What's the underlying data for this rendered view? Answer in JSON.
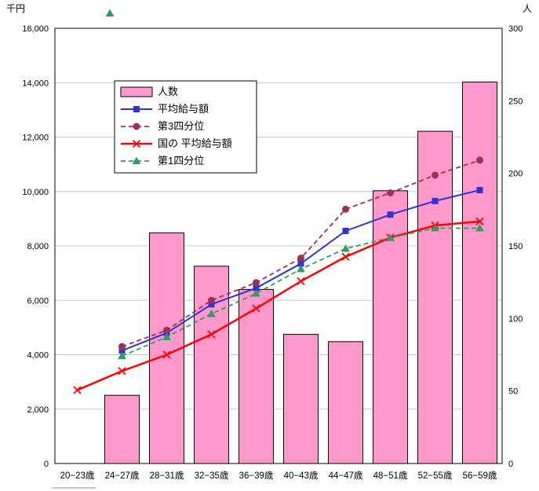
{
  "chart_data": {
    "type": "bar",
    "subtype": "combo-bar-line",
    "title": "",
    "background": "#FFFFFF",
    "grid": true,
    "left_axis": {
      "title": "千円",
      "min": 0,
      "max": 16000,
      "step": 2000
    },
    "right_axis": {
      "title": "人",
      "min": 0,
      "max": 300,
      "step": 50
    },
    "categories": [
      "20−23歳",
      "24−27歳",
      "28−31歳",
      "32−35歳",
      "36−39歳",
      "40−43歳",
      "44−47歳",
      "48−51歳",
      "52−55歳",
      "56−59歳"
    ],
    "bars": {
      "name": "人数",
      "axis": "right",
      "color": "#FF99CC",
      "border": "#000000",
      "values": [
        null,
        47,
        159,
        136,
        120,
        89,
        84,
        188,
        229,
        263
      ]
    },
    "series": [
      {
        "name": "平均給与額",
        "axis": "left",
        "color": "#3333CC",
        "marker": "square",
        "line": "solid",
        "width": 2,
        "values": [
          null,
          4150,
          4800,
          5850,
          6450,
          7350,
          8550,
          9150,
          9650,
          10050
        ]
      },
      {
        "name": "第3四分位",
        "axis": "left",
        "color": "#993355",
        "marker": "circle",
        "line": "dashed",
        "width": 1.8,
        "values": [
          null,
          4300,
          4900,
          6000,
          6650,
          7550,
          9350,
          9950,
          10600,
          11150
        ]
      },
      {
        "name": "国の 平均給与額",
        "axis": "left",
        "color": "#FF0000",
        "marker": "x",
        "line": "solid",
        "width": 2.5,
        "values": [
          2700,
          3400,
          4000,
          4750,
          5700,
          6700,
          7600,
          8300,
          8750,
          8900
        ]
      },
      {
        "name": "第1四分位",
        "axis": "left",
        "color": "#339966",
        "marker": "triangle",
        "line": "dashed",
        "width": 1.8,
        "values": [
          null,
          3950,
          4650,
          5500,
          6250,
          7150,
          7900,
          8300,
          8650,
          8650
        ]
      }
    ],
    "legend": {
      "position": "inside-top-left",
      "items": [
        "人数",
        "平均給与額",
        "第3四分位",
        "国の 平均給与額",
        "第1四分位"
      ]
    }
  }
}
